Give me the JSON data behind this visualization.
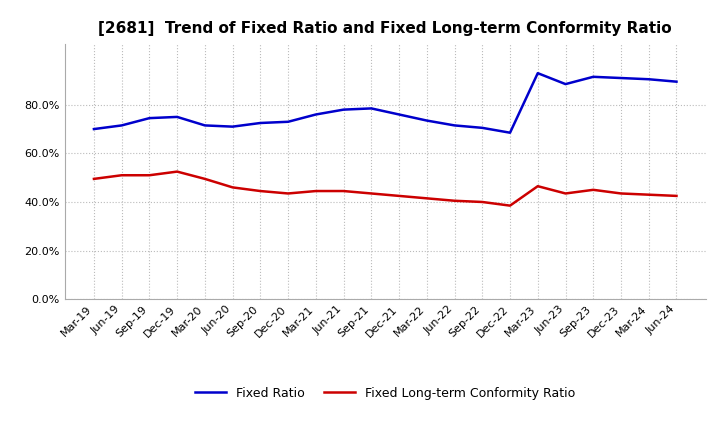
{
  "title": "[2681]  Trend of Fixed Ratio and Fixed Long-term Conformity Ratio",
  "x_labels": [
    "Mar-19",
    "Jun-19",
    "Sep-19",
    "Dec-19",
    "Mar-20",
    "Jun-20",
    "Sep-20",
    "Dec-20",
    "Mar-21",
    "Jun-21",
    "Sep-21",
    "Dec-21",
    "Mar-22",
    "Jun-22",
    "Sep-22",
    "Dec-22",
    "Mar-23",
    "Jun-23",
    "Sep-23",
    "Dec-23",
    "Mar-24",
    "Jun-24"
  ],
  "fixed_ratio": [
    70.0,
    71.5,
    74.5,
    75.0,
    71.5,
    71.0,
    72.5,
    73.0,
    76.0,
    78.0,
    78.5,
    76.0,
    73.5,
    71.5,
    70.5,
    68.5,
    93.0,
    88.5,
    91.5,
    91.0,
    90.5,
    89.5
  ],
  "fixed_lt_ratio": [
    49.5,
    51.0,
    51.0,
    52.5,
    49.5,
    46.0,
    44.5,
    43.5,
    44.5,
    44.5,
    43.5,
    42.5,
    41.5,
    40.5,
    40.0,
    38.5,
    46.5,
    43.5,
    45.0,
    43.5,
    43.0,
    42.5
  ],
  "fixed_ratio_color": "#0000CC",
  "fixed_lt_ratio_color": "#CC0000",
  "background_color": "#ffffff",
  "plot_bg_color": "#ffffff",
  "grid_color": "#bbbbbb",
  "ylim": [
    0,
    105
  ],
  "yticks": [
    0,
    20,
    40,
    60,
    80
  ],
  "ytick_labels": [
    "0.0%",
    "20.0%",
    "40.0%",
    "60.0%",
    "80.0%"
  ],
  "title_fontsize": 11,
  "tick_fontsize": 8,
  "legend_fontsize": 9
}
